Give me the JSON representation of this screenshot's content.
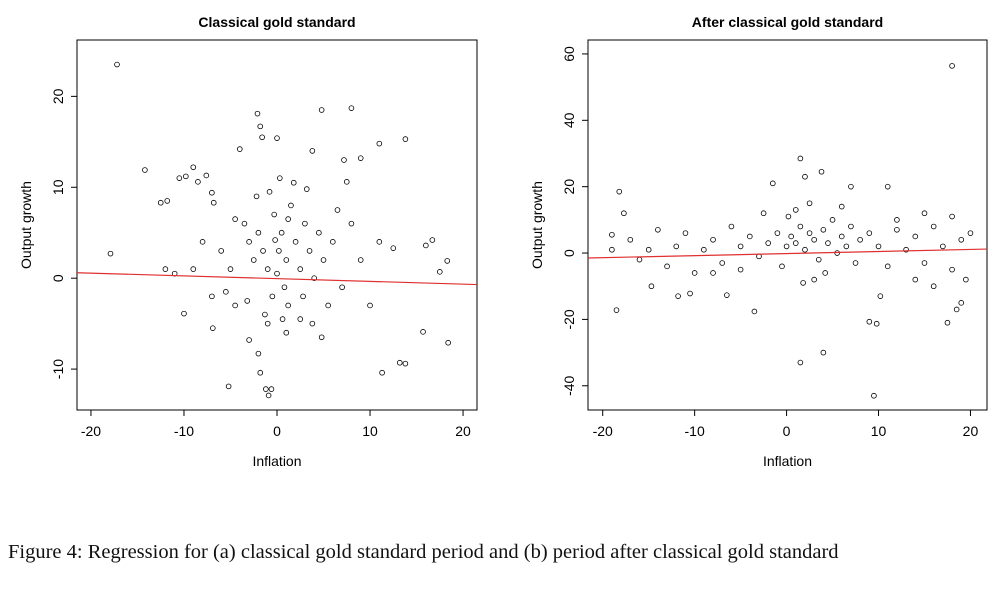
{
  "chart_data": [
    {
      "type": "scatter",
      "title": "Classical gold standard",
      "x_label": "Inflation",
      "y_label": "Output growth",
      "xlim": [
        -21.5,
        21.5
      ],
      "ylim": [
        -14.5,
        26.2
      ],
      "xticks": [
        -20,
        -10,
        0,
        10,
        20
      ],
      "yticks": [
        -10,
        0,
        10,
        20
      ],
      "marker_color": "#000000",
      "x": [
        -17.2,
        -17.9,
        -14.2,
        -12.5,
        -11.8,
        -10.5,
        -9.8,
        -9,
        -8.5,
        -7.6,
        -7,
        -6.8,
        -10,
        -6.9,
        -5.2,
        -2,
        -1.8,
        -1.2,
        -0.9,
        -0.6,
        -2.1,
        -1.8,
        -1.6,
        0,
        -4,
        4.8,
        8,
        9,
        11,
        13.8,
        3.8,
        7.5,
        7.2,
        12.5,
        16,
        16.7,
        17.5,
        18.3,
        15.7,
        13.2,
        13.8,
        11.3,
        18.4,
        4.8,
        2.5,
        1,
        -3,
        -4.5,
        3.8,
        -1,
        0.2,
        0.5,
        -0.3,
        1,
        1.5,
        2,
        -1,
        -1.5,
        -2,
        -2.5,
        -3,
        -3.5,
        0.8,
        1.2,
        -0.5,
        2.5,
        3,
        3.5,
        4,
        4.5,
        -0.8,
        0.3,
        1.8,
        -2.2,
        2.8,
        -1.3,
        0,
        0.6,
        5,
        6,
        7,
        8,
        9,
        10,
        11,
        -5,
        -6,
        -7,
        -8,
        -9,
        -11,
        -12,
        5.5,
        6.5,
        -4.5,
        -5.5,
        3.2,
        -3.2,
        1.2,
        -0.2
      ],
      "values": [
        23.5,
        2.7,
        11.9,
        8.3,
        8.5,
        11,
        11.2,
        12.2,
        10.6,
        11.3,
        9.4,
        8.3,
        -3.9,
        -5.5,
        -11.9,
        -8.3,
        -10.4,
        -12.2,
        -12.9,
        -12.2,
        18.1,
        16.7,
        15.5,
        15.4,
        14.2,
        18.5,
        18.7,
        13.2,
        14.8,
        15.3,
        14,
        10.6,
        13,
        3.3,
        3.6,
        4.2,
        0.7,
        1.9,
        -5.9,
        -9.3,
        -9.4,
        -10.4,
        -7.1,
        -6.5,
        -4.5,
        -6,
        -6.8,
        -3,
        -5,
        -5,
        3,
        5,
        7,
        2,
        8,
        4,
        1,
        3,
        5,
        2,
        4,
        6,
        -1,
        -3,
        -2,
        1,
        6,
        3,
        0,
        5,
        9.5,
        11,
        10.5,
        9,
        -2,
        -4,
        0.5,
        -4.5,
        2,
        4,
        -1,
        6,
        2,
        -3,
        4,
        1,
        3,
        -2,
        4,
        1,
        0.5,
        1,
        -3,
        7.5,
        6.5,
        -1.5,
        9.8,
        -2.5,
        6.5,
        4.2
      ],
      "fit": {
        "x": [
          -21.5,
          21.5
        ],
        "values": [
          0.6,
          -0.7
        ],
        "color": "#e03030"
      }
    },
    {
      "type": "scatter",
      "title": "After classical gold standard",
      "x_label": "Inflation",
      "y_label": "Output growth",
      "xlim": [
        -21.6,
        21.8
      ],
      "ylim": [
        -47.3,
        64.2
      ],
      "xticks": [
        -20,
        -10,
        0,
        10,
        20
      ],
      "yticks": [
        -40,
        -20,
        0,
        20,
        40,
        60
      ],
      "marker_color": "#000000",
      "x": [
        18,
        -18.2,
        -17.7,
        -19,
        -18.5,
        -14.7,
        -11.8,
        -10.5,
        -6.5,
        -3.5,
        1.5,
        3.8,
        2,
        -1.5,
        7,
        11,
        9,
        9.8,
        1.5,
        4,
        9.5,
        17.5,
        19,
        18.5,
        10.2,
        14,
        16,
        -5,
        -8,
        0,
        0.5,
        1,
        1.5,
        2,
        2.5,
        3,
        3.5,
        4,
        4.5,
        5,
        5.5,
        6,
        6.5,
        7,
        7.5,
        8,
        -0.5,
        -1,
        -2,
        -3,
        -4,
        -5,
        -6,
        -7,
        -8,
        -9,
        -10,
        -11,
        -12,
        -13,
        -14,
        -15,
        -16,
        9,
        10,
        11,
        12,
        13,
        14,
        15,
        16,
        17,
        18,
        19,
        20,
        1,
        2.5,
        3,
        1.8,
        0.2,
        4.2,
        6,
        -2.5,
        12,
        15,
        18,
        -17,
        -19,
        19.5
      ],
      "values": [
        56.4,
        18.5,
        12,
        5.5,
        -17.2,
        -10,
        -13,
        -12.2,
        -12.7,
        -17.6,
        28.5,
        24.5,
        23,
        21,
        20,
        20,
        -20.7,
        -21.3,
        -33,
        -30,
        -43,
        -21,
        -15,
        -17,
        -13,
        -8,
        -10,
        -5,
        -6,
        2,
        5,
        3,
        8,
        1,
        6,
        4,
        -2,
        7,
        3,
        10,
        0,
        5,
        2,
        8,
        -3,
        4,
        -4,
        6,
        3,
        -1,
        5,
        2,
        8,
        -3,
        4,
        1,
        -6,
        6,
        2,
        -4,
        7,
        1,
        -2,
        6,
        2,
        -4,
        7,
        1,
        5,
        -3,
        8,
        2,
        -5,
        4,
        6,
        13,
        15,
        -8,
        -9,
        11,
        -6,
        14,
        12,
        10,
        12,
        11,
        4,
        1,
        -8
      ],
      "fit": {
        "x": [
          -21.6,
          21.8
        ],
        "values": [
          -1.5,
          1.2
        ],
        "color": "#e03030"
      }
    }
  ],
  "caption": "Figure 4: Regression for (a) classical gold standard period and (b) period after classical gold standard"
}
